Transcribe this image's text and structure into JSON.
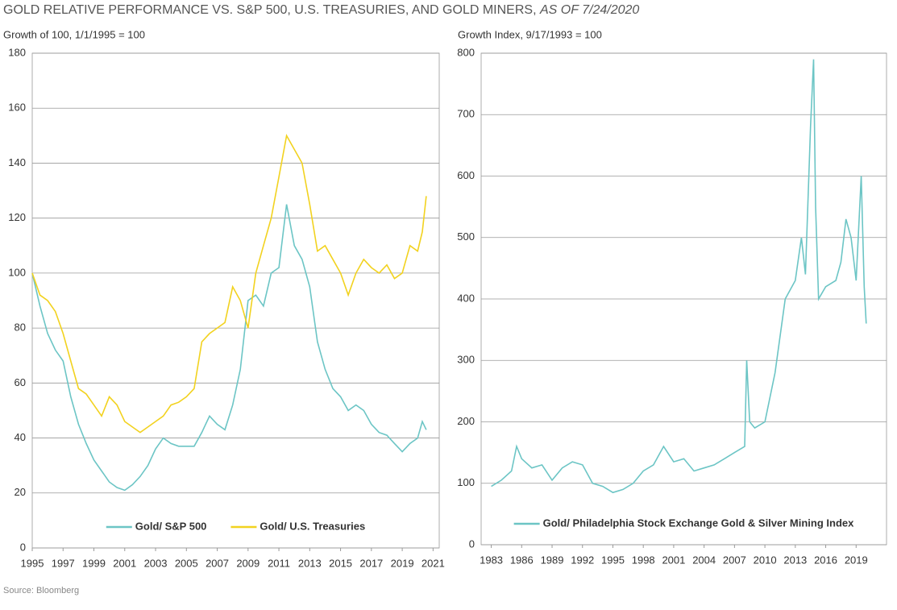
{
  "header": {
    "title": "GOLD RELATIVE PERFORMANCE VS. S&P 500, U.S. TREASURIES, AND GOLD MINERS,",
    "date": "AS OF 7/24/2020"
  },
  "source": "Source: Bloomberg",
  "chart_data": [
    {
      "type": "line",
      "ylabel": "Growth of 100, 1/1/1995 = 100",
      "xlim": [
        1995,
        2021.4
      ],
      "xticks": [
        1995,
        1997,
        1999,
        2001,
        2003,
        2005,
        2007,
        2009,
        2011,
        2013,
        2015,
        2017,
        2019,
        2021
      ],
      "ylim": [
        0,
        180
      ],
      "yticks": [
        0,
        20,
        40,
        60,
        80,
        100,
        120,
        140,
        160,
        180
      ],
      "grid": true,
      "legend": "lower center",
      "x": [
        1995,
        1995.5,
        1996,
        1996.5,
        1997,
        1997.5,
        1998,
        1998.5,
        1999,
        1999.5,
        2000,
        2000.5,
        2001,
        2001.5,
        2002,
        2002.5,
        2003,
        2003.5,
        2004,
        2004.5,
        2005,
        2005.5,
        2006,
        2006.5,
        2007,
        2007.5,
        2008,
        2008.5,
        2009,
        2009.5,
        2010,
        2010.5,
        2011,
        2011.5,
        2012,
        2012.5,
        2013,
        2013.5,
        2014,
        2014.5,
        2015,
        2015.5,
        2016,
        2016.5,
        2017,
        2017.5,
        2018,
        2018.5,
        2019,
        2019.5,
        2020,
        2020.3,
        2020.56
      ],
      "series": [
        {
          "name": "Gold/ S&P 500",
          "color": "#6cc5c5",
          "values": [
            100,
            88,
            78,
            72,
            68,
            55,
            45,
            38,
            32,
            28,
            24,
            22,
            21,
            23,
            26,
            30,
            36,
            40,
            38,
            37,
            37,
            37,
            42,
            48,
            45,
            43,
            52,
            65,
            90,
            92,
            88,
            100,
            102,
            125,
            110,
            105,
            95,
            75,
            65,
            58,
            55,
            50,
            52,
            50,
            45,
            42,
            41,
            38,
            35,
            38,
            40,
            46,
            43
          ]
        },
        {
          "name": "Gold/ U.S. Treasuries",
          "color": "#f2d21f",
          "values": [
            100,
            92,
            90,
            86,
            78,
            68,
            58,
            56,
            52,
            48,
            55,
            52,
            46,
            44,
            42,
            44,
            46,
            48,
            52,
            53,
            55,
            58,
            75,
            78,
            80,
            82,
            95,
            90,
            80,
            100,
            110,
            120,
            135,
            150,
            145,
            140,
            125,
            108,
            110,
            105,
            100,
            92,
            100,
            105,
            102,
            100,
            103,
            98,
            100,
            110,
            108,
            115,
            128
          ]
        }
      ]
    },
    {
      "type": "line",
      "ylabel": "Growth Index, 9/17/1993 = 100",
      "xlim": [
        1982,
        2022
      ],
      "xticks": [
        1983,
        1986,
        1989,
        1992,
        1995,
        1998,
        2001,
        2004,
        2007,
        2010,
        2013,
        2016,
        2019
      ],
      "ylim": [
        0,
        800
      ],
      "yticks": [
        0,
        100,
        200,
        300,
        400,
        500,
        600,
        700,
        800
      ],
      "grid": true,
      "legend": "lower center",
      "x": [
        1983,
        1984,
        1985,
        1985.5,
        1986,
        1987,
        1988,
        1989,
        1990,
        1991,
        1992,
        1993,
        1994,
        1995,
        1996,
        1997,
        1998,
        1999,
        2000,
        2001,
        2002,
        2003,
        2004,
        2005,
        2006,
        2007,
        2008,
        2008.2,
        2008.5,
        2009,
        2010,
        2011,
        2012,
        2013,
        2013.6,
        2014,
        2014.5,
        2014.8,
        2015,
        2015.3,
        2016,
        2017,
        2017.5,
        2018,
        2018.5,
        2019,
        2019.5,
        2019.8,
        2020
      ],
      "series": [
        {
          "name": "Gold/ Philadelphia Stock Exchange Gold & Silver Mining Index",
          "color": "#6cc5c5",
          "values": [
            95,
            105,
            120,
            160,
            140,
            125,
            130,
            105,
            125,
            135,
            130,
            100,
            95,
            85,
            90,
            100,
            120,
            130,
            160,
            135,
            140,
            120,
            125,
            130,
            140,
            150,
            160,
            300,
            200,
            190,
            200,
            280,
            400,
            430,
            500,
            440,
            680,
            790,
            550,
            400,
            420,
            430,
            460,
            530,
            500,
            430,
            600,
            420,
            360
          ]
        }
      ]
    }
  ]
}
